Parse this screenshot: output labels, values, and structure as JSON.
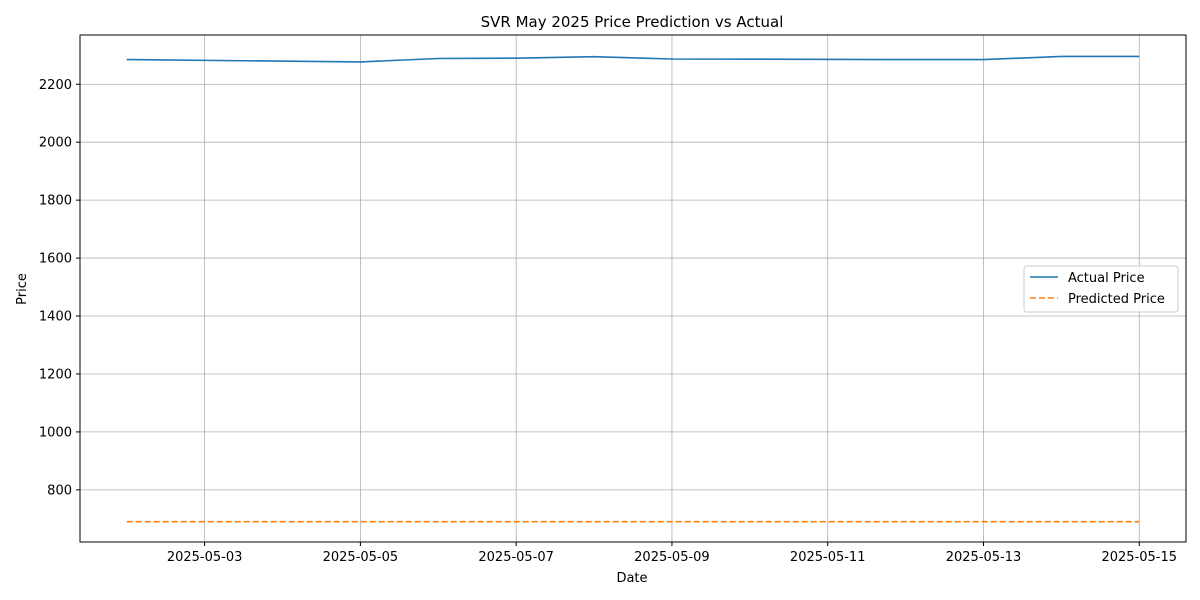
{
  "chart_data": {
    "type": "line",
    "title": "SVR May 2025 Price Prediction vs Actual",
    "xlabel": "Date",
    "ylabel": "Price",
    "x": [
      "2025-05-02",
      "2025-05-05",
      "2025-05-06",
      "2025-05-07",
      "2025-05-08",
      "2025-05-09",
      "2025-05-12",
      "2025-05-13",
      "2025-05-14",
      "2025-05-15"
    ],
    "xlim": [
      "2025-05-01T09:36",
      "2025-05-15T14:24"
    ],
    "x_ticks": [
      "2025-05-03",
      "2025-05-05",
      "2025-05-07",
      "2025-05-09",
      "2025-05-11",
      "2025-05-13",
      "2025-05-15"
    ],
    "ylim": [
      620,
      2370
    ],
    "y_ticks": [
      800,
      1000,
      1200,
      1400,
      1600,
      1800,
      2000,
      2200
    ],
    "grid": true,
    "legend_position": "center-right",
    "series": [
      {
        "name": "Actual Price",
        "color": "#1f77b4",
        "style": "solid",
        "values": [
          2285,
          2277,
          2289,
          2290,
          2295,
          2287,
          2285,
          2285,
          2296,
          2296
        ]
      },
      {
        "name": "Predicted Price",
        "color": "#ff7f0e",
        "style": "dashed",
        "values": [
          690,
          690,
          690,
          690,
          690,
          690,
          690,
          690,
          690,
          690
        ]
      }
    ]
  }
}
